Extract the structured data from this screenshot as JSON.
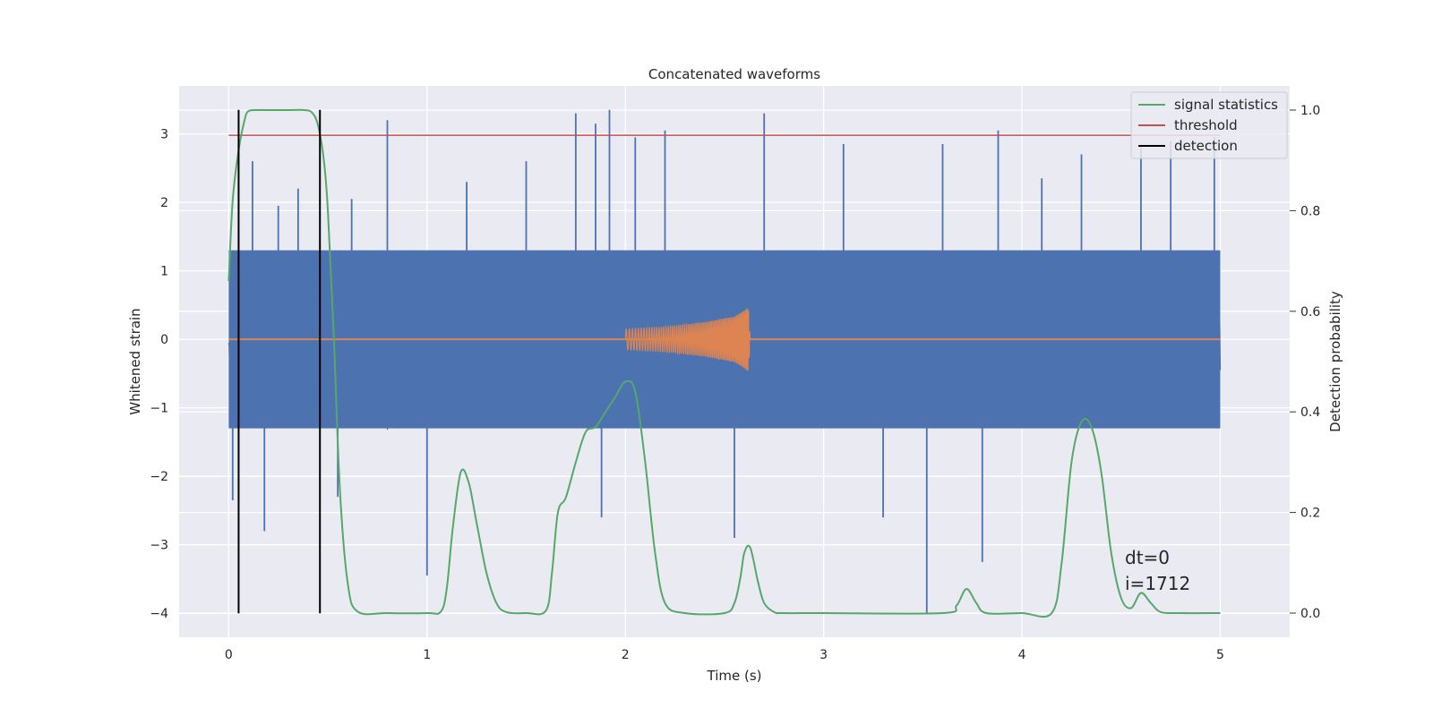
{
  "chart_data": {
    "type": "line",
    "title": "Concatenated waveforms",
    "xlabel": "Time (s)",
    "ylabel": "Whitened strain",
    "y2label": "Detection probability",
    "xlim": [
      -0.25,
      5.35
    ],
    "ylim": [
      -4.35,
      3.7
    ],
    "y2lim": [
      -0.048,
      1.048
    ],
    "xticks": [
      0,
      1,
      2,
      3,
      4,
      5
    ],
    "yticks": [
      3,
      2,
      1,
      0,
      -1,
      -2,
      -3,
      -4
    ],
    "y2ticks": [
      0.0,
      0.2,
      0.4,
      0.6,
      0.8,
      1.0
    ],
    "xtick_labels": [
      "0",
      "1",
      "2",
      "3",
      "4",
      "5"
    ],
    "ytick_labels": [
      "3",
      "2",
      "1",
      "0",
      "−1",
      "−2",
      "−3",
      "−4"
    ],
    "y2tick_labels": [
      "0.0",
      "0.2",
      "0.4",
      "0.6",
      "0.8",
      "1.0"
    ],
    "grid": true,
    "legend_position": "top-right",
    "legend": [
      "signal statistics",
      "threshold",
      "detection"
    ],
    "annotation": [
      "dt=0",
      "i=1712"
    ],
    "colors": {
      "noise": "#4c72b0",
      "injected": "#dd8452",
      "signal_statistics": "#55a868",
      "threshold": "#c44e52",
      "detection": "#000000",
      "axes_bg": "#eaeaf2",
      "grid": "#ffffff"
    },
    "series": [
      {
        "name": "signal statistics",
        "axis": "y2",
        "x": [
          0.0,
          0.02,
          0.05,
          0.08,
          0.1,
          0.15,
          0.2,
          0.3,
          0.38,
          0.42,
          0.45,
          0.48,
          0.5,
          0.53,
          0.56,
          0.6,
          0.65,
          0.8,
          1.0,
          1.07,
          1.1,
          1.13,
          1.17,
          1.21,
          1.25,
          1.3,
          1.35,
          1.4,
          1.5,
          1.6,
          1.63,
          1.66,
          1.7,
          1.75,
          1.8,
          1.85,
          1.9,
          1.95,
          2.0,
          2.05,
          2.1,
          2.15,
          2.2,
          2.3,
          2.5,
          2.55,
          2.58,
          2.6,
          2.63,
          2.67,
          2.7,
          2.75,
          2.8,
          3.0,
          3.6,
          3.67,
          3.72,
          3.77,
          3.82,
          4.0,
          4.15,
          4.2,
          4.25,
          4.3,
          4.35,
          4.4,
          4.45,
          4.5,
          4.55,
          4.6,
          4.65,
          4.7,
          4.8,
          5.0
        ],
        "y": [
          0.66,
          0.82,
          0.92,
          0.98,
          0.998,
          1.0,
          1.0,
          1.0,
          1.0,
          0.995,
          0.97,
          0.9,
          0.8,
          0.55,
          0.25,
          0.06,
          0.003,
          0.0,
          0.0,
          0.003,
          0.05,
          0.17,
          0.28,
          0.26,
          0.18,
          0.08,
          0.02,
          0.002,
          0.0,
          0.005,
          0.08,
          0.2,
          0.23,
          0.3,
          0.36,
          0.37,
          0.4,
          0.43,
          0.46,
          0.44,
          0.3,
          0.12,
          0.02,
          0.0,
          0.0,
          0.02,
          0.07,
          0.12,
          0.13,
          0.06,
          0.02,
          0.002,
          0.0,
          0.0,
          0.0,
          0.015,
          0.048,
          0.02,
          0.0,
          0.0,
          0.0,
          0.1,
          0.3,
          0.38,
          0.37,
          0.28,
          0.12,
          0.03,
          0.01,
          0.04,
          0.02,
          0.002,
          0.0,
          0.0
        ]
      },
      {
        "name": "threshold",
        "axis": "y",
        "x": [
          0,
          5
        ],
        "y": [
          2.98,
          2.98
        ]
      },
      {
        "name": "detection",
        "axis": "y",
        "x": [
          0.05,
          0.46
        ],
        "y": [
          -4.0,
          3.35
        ]
      },
      {
        "axis": "y",
        "x": [
          0,
          5
        ],
        "envelope_lower": [
          -1.3,
          -1.3
        ],
        "envelope_upper": [
          1.3,
          1.3
        ],
        "spikes_x": [
          0.02,
          0.12,
          0.18,
          0.25,
          0.35,
          0.55,
          0.62,
          0.8,
          1.0,
          1.2,
          1.5,
          1.75,
          1.85,
          1.88,
          1.92,
          2.05,
          2.2,
          2.55,
          2.7,
          3.1,
          3.3,
          3.52,
          3.6,
          3.8,
          3.88,
          4.1,
          4.3,
          4.6,
          4.75,
          4.97
        ],
        "spikes_y": [
          -2.35,
          2.6,
          -2.8,
          1.95,
          2.2,
          -2.3,
          2.05,
          3.2,
          -3.45,
          2.3,
          2.6,
          3.3,
          3.15,
          -2.6,
          3.35,
          2.95,
          3.05,
          -2.9,
          3.3,
          2.85,
          -2.6,
          -4.0,
          2.85,
          -3.25,
          3.05,
          2.35,
          2.7,
          2.8,
          2.9,
          2.95
        ]
      },
      {
        "axis": "y",
        "x": [
          0,
          2.0,
          2.2,
          2.4,
          2.55,
          2.6,
          2.62,
          2.63,
          5
        ],
        "amplitude": [
          0,
          0.15,
          0.18,
          0.25,
          0.33,
          0.42,
          0.47,
          0.0,
          0
        ]
      }
    ]
  }
}
